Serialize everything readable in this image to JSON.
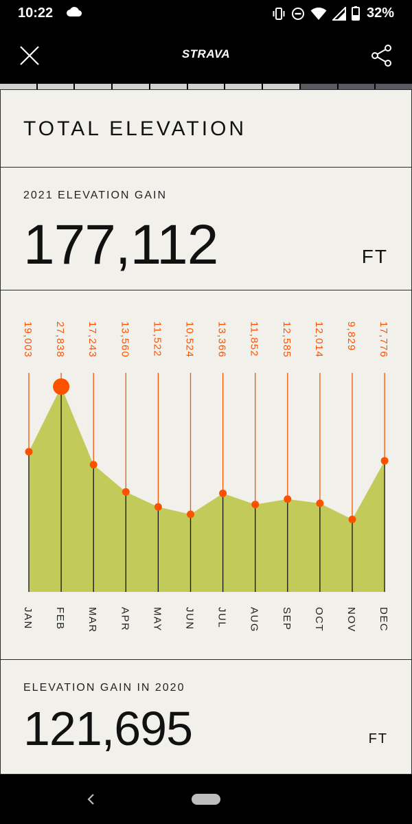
{
  "status_bar": {
    "time": "10:22",
    "battery": "32%",
    "icons": [
      "cloud-icon",
      "vibrate-icon",
      "dnd-icon",
      "wifi-icon",
      "signal-icon",
      "battery-icon"
    ]
  },
  "header": {
    "brand": "STRAVA",
    "close_icon": "close-icon",
    "share_icon": "share-icon"
  },
  "progress": {
    "total_segments": 11,
    "active_segments": 8,
    "active_color": "#cfd3cd",
    "inactive_color": "#5a5a60"
  },
  "title_card": {
    "title": "TOTAL ELEVATION"
  },
  "gain_card": {
    "label": "2021 ELEVATION GAIN",
    "value": "177,112",
    "unit": "FT"
  },
  "chart_data": {
    "type": "area",
    "categories": [
      "JAN",
      "FEB",
      "MAR",
      "APR",
      "MAY",
      "JUN",
      "JUL",
      "AUG",
      "SEP",
      "OCT",
      "NOV",
      "DEC"
    ],
    "values": [
      19003,
      27838,
      17243,
      13560,
      11522,
      10524,
      13366,
      11852,
      12585,
      12014,
      9829,
      17776
    ],
    "value_labels": [
      "19,003",
      "27,838",
      "17,243",
      "13,560",
      "11,522",
      "10,524",
      "13,366",
      "11,852",
      "12,585",
      "12,014",
      "9,829",
      "17,776"
    ],
    "highlight_index": 1,
    "fill_color": "#c2cb59",
    "marker_color": "#fc5200",
    "label_color": "#fc5200"
  },
  "prev_card": {
    "label": "ELEVATION GAIN IN 2020",
    "value": "121,695",
    "unit": "FT"
  }
}
